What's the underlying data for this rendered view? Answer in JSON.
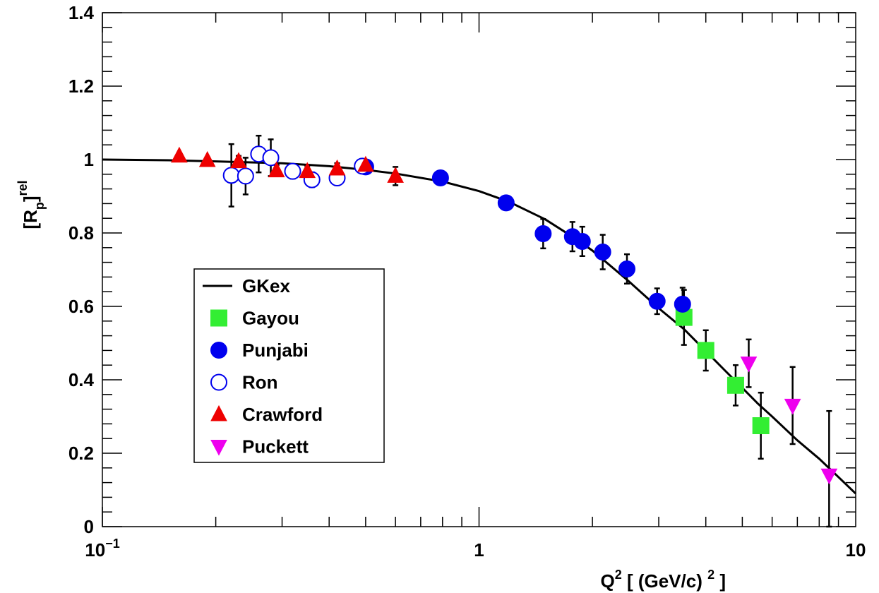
{
  "chart_data": {
    "type": "scatter",
    "title": "",
    "xlabel": {
      "main": "Q",
      "sup": "2",
      "unit_pre": "[ (GeV/c) ",
      "unit_sup": "2",
      "unit_post": " ]"
    },
    "ylabel": {
      "open": "[R",
      "sub": "p",
      "close": "]",
      "sup": "rel"
    },
    "xscale": "log",
    "xlim": [
      0.1,
      10
    ],
    "ylim": [
      0,
      1.4
    ],
    "x_tick_labels": [
      {
        "value": 0.1,
        "base": "10",
        "exp": "−1"
      },
      {
        "value": 1,
        "base": "1",
        "exp": ""
      },
      {
        "value": 10,
        "base": "10",
        "exp": ""
      }
    ],
    "y_ticks": [
      0,
      0.2,
      0.4,
      0.6,
      0.8,
      1,
      1.2,
      1.4
    ],
    "y_tick_labels": [
      "0",
      "0.2",
      "0.4",
      "0.6",
      "0.8",
      "1",
      "1.2",
      "1.4"
    ],
    "grid": false,
    "legend_position": "lower-left",
    "curve": {
      "name": "GKex",
      "color": "#000000",
      "x": [
        0.1,
        0.15,
        0.2,
        0.3,
        0.4,
        0.5,
        0.6,
        0.8,
        1.0,
        1.2,
        1.5,
        1.8,
        2.0,
        2.5,
        3.0,
        3.5,
        4.0,
        4.5,
        5.0,
        5.5,
        6.0,
        7.0,
        8.0,
        9.0,
        10.0
      ],
      "y": [
        1.0,
        0.998,
        0.995,
        0.99,
        0.982,
        0.972,
        0.962,
        0.94,
        0.914,
        0.885,
        0.837,
        0.785,
        0.752,
        0.668,
        0.595,
        0.538,
        0.478,
        0.425,
        0.378,
        0.335,
        0.3,
        0.235,
        0.185,
        0.135,
        0.09
      ]
    },
    "series": [
      {
        "name": "Gayou",
        "marker": "square",
        "color": "#33ee33",
        "filled": true,
        "points": [
          [
            3.5,
            0.57,
            0.075
          ],
          [
            4.0,
            0.48,
            0.055
          ],
          [
            4.8,
            0.385,
            0.055
          ],
          [
            5.6,
            0.275,
            0.09
          ]
        ]
      },
      {
        "name": "Punjabi",
        "marker": "circle",
        "color": "#0000ee",
        "filled": true,
        "points": [
          [
            0.5,
            0.98,
            0.008
          ],
          [
            0.79,
            0.95,
            0.008
          ],
          [
            1.18,
            0.882,
            0.012
          ],
          [
            1.48,
            0.798,
            0.04
          ],
          [
            1.77,
            0.79,
            0.04
          ],
          [
            1.88,
            0.777,
            0.04
          ],
          [
            2.13,
            0.748,
            0.047
          ],
          [
            2.47,
            0.702,
            0.04
          ],
          [
            2.97,
            0.614,
            0.035
          ],
          [
            3.47,
            0.606,
            0.045
          ]
        ]
      },
      {
        "name": "Ron",
        "marker": "circle",
        "color": "#0000ee",
        "filled": false,
        "points": [
          [
            0.22,
            0.957,
            0.085
          ],
          [
            0.24,
            0.955,
            0.05
          ],
          [
            0.26,
            1.015,
            0.05
          ],
          [
            0.28,
            1.005,
            0.05
          ],
          [
            0.32,
            0.968,
            0.02
          ],
          [
            0.36,
            0.945,
            0.02
          ],
          [
            0.42,
            0.95,
            0.02
          ],
          [
            0.49,
            0.982,
            0.015
          ]
        ]
      },
      {
        "name": "Crawford",
        "marker": "triangle-up",
        "color": "#ee0000",
        "filled": true,
        "points": [
          [
            0.16,
            1.01,
            0.008
          ],
          [
            0.19,
            0.998,
            0.008
          ],
          [
            0.23,
            0.995,
            0.015
          ],
          [
            0.29,
            0.97,
            0.015
          ],
          [
            0.35,
            0.968,
            0.015
          ],
          [
            0.42,
            0.975,
            0.015
          ],
          [
            0.5,
            0.985,
            0.01
          ],
          [
            0.6,
            0.955,
            0.025
          ]
        ]
      },
      {
        "name": "Puckett",
        "marker": "triangle-down",
        "color": "#ee00ee",
        "filled": true,
        "points": [
          [
            5.2,
            0.445,
            0.065
          ],
          [
            6.8,
            0.33,
            0.105
          ],
          [
            8.5,
            0.14,
            0.175
          ]
        ]
      }
    ]
  }
}
